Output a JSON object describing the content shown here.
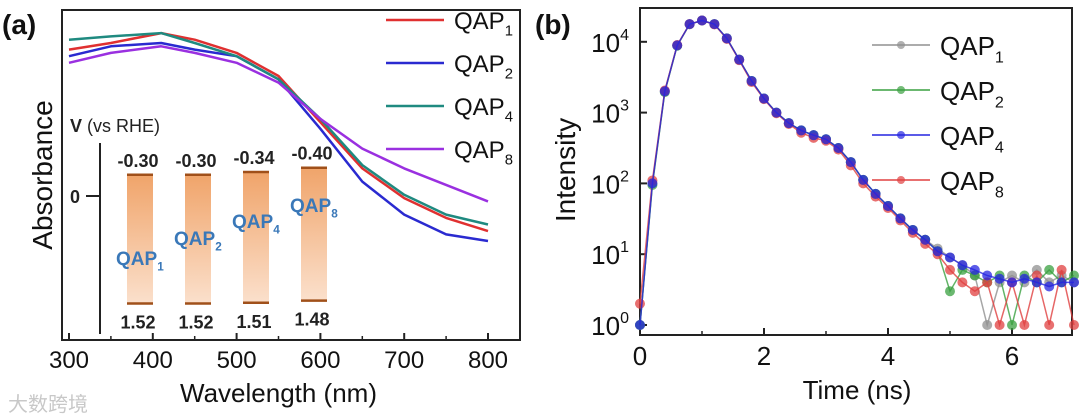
{
  "chart_data": [
    {
      "panel_label": "(a)",
      "type": "line",
      "xlabel": "Wavelength (nm)",
      "ylabel": "Absorbance",
      "xlim": [
        300,
        850
      ],
      "ylim": [
        0,
        1
      ],
      "xticks": [
        300,
        400,
        500,
        600,
        700,
        800
      ],
      "legend_position": "top-right",
      "x": [
        300,
        350,
        410,
        450,
        500,
        550,
        600,
        650,
        700,
        750,
        800
      ],
      "series": [
        {
          "name": "QAP",
          "sub": "1",
          "color": "#e03030",
          "values": [
            0.88,
            0.9,
            0.93,
            0.91,
            0.87,
            0.8,
            0.66,
            0.52,
            0.43,
            0.37,
            0.33
          ]
        },
        {
          "name": "QAP",
          "sub": "2",
          "color": "#2a2ad0",
          "values": [
            0.86,
            0.89,
            0.9,
            0.88,
            0.86,
            0.79,
            0.64,
            0.48,
            0.38,
            0.32,
            0.3
          ]
        },
        {
          "name": "QAP",
          "sub": "4",
          "color": "#1f8a80",
          "values": [
            0.91,
            0.92,
            0.93,
            0.9,
            0.86,
            0.79,
            0.67,
            0.53,
            0.44,
            0.38,
            0.35
          ]
        },
        {
          "name": "QAP",
          "sub": "8",
          "color": "#9a30e0",
          "values": [
            0.84,
            0.87,
            0.89,
            0.87,
            0.84,
            0.78,
            0.67,
            0.58,
            0.52,
            0.47,
            0.42
          ]
        }
      ],
      "inset": {
        "ylabel_bold": "V",
        "ylabel_rest": "(vs RHE)",
        "zero_tick": "0",
        "bars": [
          {
            "name": "QAP",
            "sub": "1",
            "cb": "-0.30",
            "vb": "1.52",
            "cb_v": -0.3,
            "vb_v": 1.52
          },
          {
            "name": "QAP",
            "sub": "2",
            "cb": "-0.30",
            "vb": "1.52",
            "cb_v": -0.3,
            "vb_v": 1.52
          },
          {
            "name": "QAP",
            "sub": "4",
            "cb": "-0.34",
            "vb": "1.51",
            "cb_v": -0.34,
            "vb_v": 1.51
          },
          {
            "name": "QAP",
            "sub": "8",
            "cb": "-0.40",
            "vb": "1.48",
            "cb_v": -0.4,
            "vb_v": 1.48
          }
        ]
      }
    },
    {
      "panel_label": "(b)",
      "type": "scatter",
      "xlabel": "Time (ns)",
      "ylabel": "Intensity",
      "xlim": [
        0,
        7
      ],
      "ylim_log10": [
        -0.1,
        4.4
      ],
      "xticks": [
        0,
        2,
        4,
        6
      ],
      "yticks": [
        {
          "base": "10",
          "exp": "0"
        },
        {
          "base": "10",
          "exp": "1"
        },
        {
          "base": "10",
          "exp": "2"
        },
        {
          "base": "10",
          "exp": "3"
        },
        {
          "base": "10",
          "exp": "4"
        }
      ],
      "legend_position": "top-right",
      "x": [
        0,
        0.2,
        0.4,
        0.6,
        0.8,
        1.0,
        1.2,
        1.4,
        1.6,
        1.8,
        2.0,
        2.2,
        2.4,
        2.6,
        2.8,
        3.0,
        3.2,
        3.4,
        3.6,
        3.8,
        4.0,
        4.2,
        4.4,
        4.6,
        4.8,
        5.0,
        5.2,
        5.4,
        5.6,
        5.8,
        6.0,
        6.2,
        6.4,
        6.6,
        6.8,
        7.0
      ],
      "series": [
        {
          "name": "QAP",
          "sub": "1",
          "color": "#909090",
          "values": [
            1,
            100,
            2000,
            8900,
            17800,
            20000,
            17800,
            11200,
            5600,
            2800,
            1580,
            1000,
            710,
            560,
            480,
            420,
            316,
            200,
            112,
            71,
            48,
            32,
            22,
            16,
            12,
            9,
            7,
            5,
            1,
            4,
            5,
            4,
            6,
            4,
            5,
            4
          ]
        },
        {
          "name": "QAP",
          "sub": "2",
          "color": "#3aa040",
          "values": [
            1,
            95,
            1950,
            8800,
            17700,
            20000,
            17800,
            11200,
            5600,
            2800,
            1580,
            1000,
            710,
            560,
            480,
            420,
            316,
            200,
            112,
            71,
            48,
            32,
            22,
            16,
            11,
            3,
            6,
            5,
            4,
            5,
            1,
            5,
            4,
            6,
            4,
            5
          ]
        },
        {
          "name": "QAP",
          "sub": "4",
          "color": "#2525e0",
          "values": [
            1,
            100,
            2000,
            8900,
            17800,
            20000,
            17800,
            11200,
            5600,
            2800,
            1580,
            1000,
            710,
            560,
            480,
            420,
            316,
            200,
            112,
            71,
            48,
            32,
            22,
            16,
            11,
            9,
            7,
            6,
            5,
            4.5,
            4,
            4.5,
            4,
            3.5,
            4,
            4
          ]
        },
        {
          "name": "QAP",
          "sub": "8",
          "color": "#e04040",
          "values": [
            2,
            110,
            2050,
            9000,
            17800,
            20000,
            17600,
            11000,
            5500,
            2700,
            1550,
            980,
            690,
            520,
            440,
            400,
            300,
            180,
            100,
            65,
            45,
            30,
            20,
            14,
            10,
            6,
            4,
            3,
            4,
            1,
            4,
            1,
            5,
            1,
            6,
            1
          ]
        }
      ],
      "draw_order": [
        0,
        1,
        3,
        2
      ]
    }
  ],
  "watermark": "大数跨境"
}
